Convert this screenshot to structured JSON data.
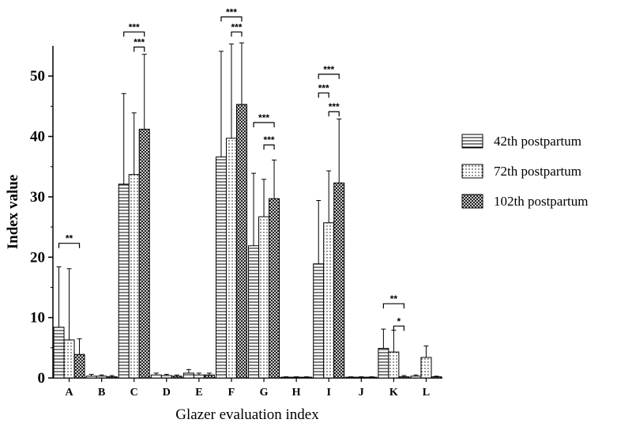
{
  "chart_data": {
    "type": "bar",
    "xlabel": "Glazer evaluation index",
    "ylabel": "Index value",
    "ylim": [
      0,
      55
    ],
    "yticks": [
      0,
      10,
      20,
      30,
      40,
      50
    ],
    "categories": [
      "A",
      "B",
      "C",
      "D",
      "E",
      "F",
      "G",
      "H",
      "I",
      "J",
      "K",
      "L"
    ],
    "legend_position": "right",
    "series": [
      {
        "name": "42th postpartum",
        "pattern": "horizontal-lines",
        "values": [
          8.4,
          0.3,
          32.1,
          0.5,
          0.8,
          36.6,
          21.9,
          0.1,
          18.9,
          0.1,
          4.9,
          0.3
        ],
        "errors": [
          10.0,
          0.3,
          15.0,
          0.3,
          0.6,
          17.5,
          12.0,
          0.1,
          10.5,
          0.1,
          3.2,
          0.2
        ]
      },
      {
        "name": "72th postpartum",
        "pattern": "dots",
        "values": [
          6.3,
          0.3,
          33.7,
          0.4,
          0.5,
          39.7,
          26.7,
          0.1,
          25.7,
          0.1,
          4.3,
          3.4
        ],
        "errors": [
          11.8,
          0.2,
          10.2,
          0.2,
          0.3,
          15.6,
          6.2,
          0.1,
          8.6,
          0.1,
          3.6,
          1.9
        ]
      },
      {
        "name": "102th postpartum",
        "pattern": "crosshatch",
        "values": [
          3.9,
          0.2,
          41.2,
          0.3,
          0.5,
          45.3,
          29.7,
          0.1,
          32.3,
          0.1,
          0.2,
          0.2
        ],
        "errors": [
          2.6,
          0.2,
          12.4,
          0.2,
          0.3,
          10.2,
          6.4,
          0.1,
          10.6,
          0.1,
          0.2,
          0.1
        ]
      }
    ],
    "significance": [
      {
        "category": "A",
        "from": 0,
        "to": 2,
        "label": "**",
        "y": 22.3
      },
      {
        "category": "C",
        "from": 0,
        "to": 2,
        "label": "***",
        "y": 57.3
      },
      {
        "category": "C",
        "from": 1,
        "to": 2,
        "label": "***",
        "y": 54.8
      },
      {
        "category": "F",
        "from": 0,
        "to": 2,
        "label": "***",
        "y": 59.8
      },
      {
        "category": "F",
        "from": 1,
        "to": 2,
        "label": "***",
        "y": 57.3
      },
      {
        "category": "G",
        "from": 0,
        "to": 2,
        "label": "***",
        "y": 42.3
      },
      {
        "category": "G",
        "from": 1,
        "to": 2,
        "label": "***",
        "y": 38.6
      },
      {
        "category": "I",
        "from": 0,
        "to": 2,
        "label": "***",
        "y": 50.3
      },
      {
        "category": "I",
        "from": 0,
        "to": 1,
        "label": "***",
        "y": 47.2
      },
      {
        "category": "I",
        "from": 1,
        "to": 2,
        "label": "***",
        "y": 44.1
      },
      {
        "category": "K",
        "from": 0,
        "to": 2,
        "label": "**",
        "y": 12.3
      },
      {
        "category": "K",
        "from": 1,
        "to": 2,
        "label": "*",
        "y": 8.6
      }
    ]
  }
}
